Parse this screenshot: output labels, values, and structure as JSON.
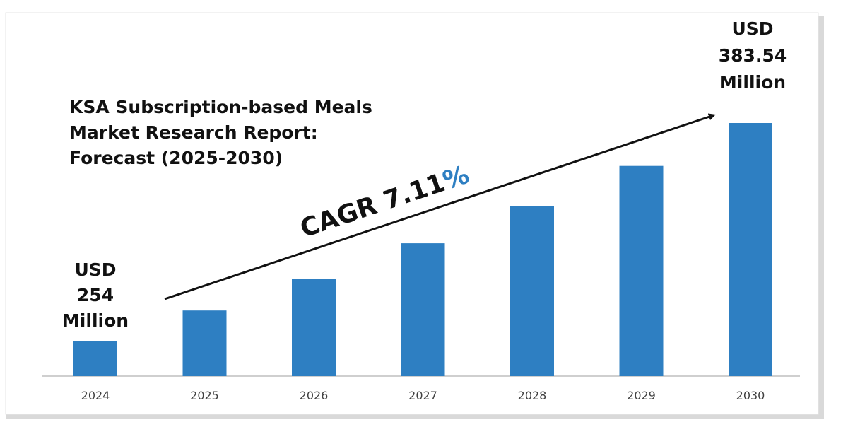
{
  "title_lines": [
    "KSA Subscription-based Meals",
    "Market Research Report:",
    "Forecast (2025-2030)"
  ],
  "start_callout": [
    "USD",
    "254",
    "Million"
  ],
  "end_callout": [
    "USD",
    "383.54",
    "Million"
  ],
  "cagr": {
    "label": "CAGR 7.11",
    "suffix": "%"
  },
  "colors": {
    "bar": "#2e7fc2",
    "percent": "#2e7fc2",
    "text": "#111111",
    "axis": "#bfbfbf"
  },
  "chart_data": {
    "type": "bar",
    "title": "KSA Subscription-based Meals Market Research Report: Forecast (2025-2030)",
    "categories": [
      "2024",
      "2025",
      "2026",
      "2027",
      "2028",
      "2029",
      "2030"
    ],
    "values": [
      254,
      272,
      291,
      312,
      334,
      358,
      383.54
    ],
    "unit": "USD Million",
    "xlabel": "",
    "ylabel": "",
    "ylim": [
      230,
      390
    ],
    "grid": false,
    "legend": "none"
  }
}
